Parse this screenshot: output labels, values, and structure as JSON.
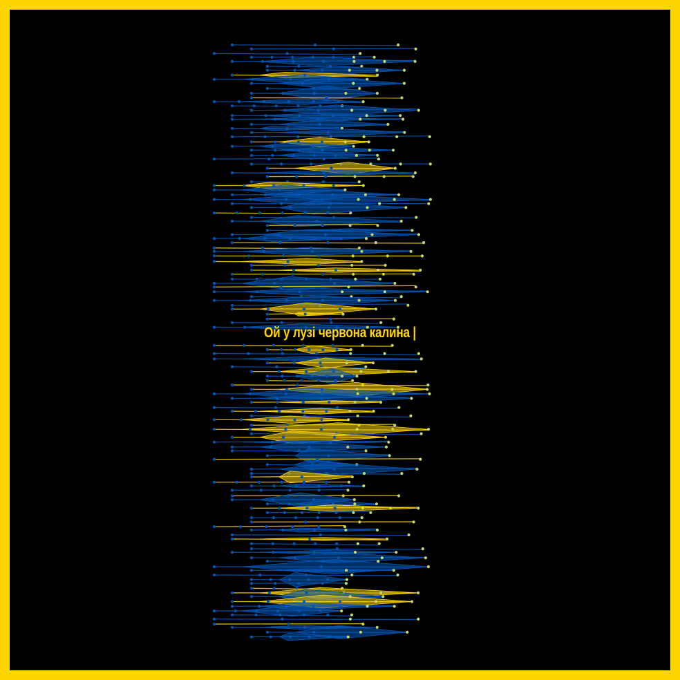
{
  "caption": "Ой у лузі червона калина |",
  "colors": {
    "border": "#FFD500",
    "background": "#000000",
    "blue": "#0057B7",
    "yellow": "#FFD500",
    "node_yellow": "#C8D86A"
  }
}
